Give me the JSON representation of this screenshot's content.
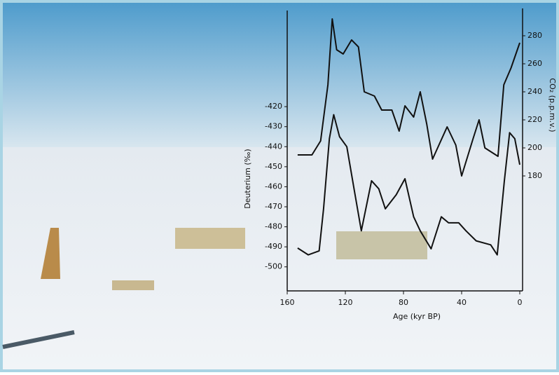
{
  "chart_data": {
    "type": "line",
    "x_label": "Age (kyr BP)",
    "y_label": "Deuterium (‰)",
    "y2_label": "CO₂ (p.p.m.v.)",
    "xlim": [
      160,
      0
    ],
    "xticks": [
      160,
      120,
      80,
      40,
      0
    ],
    "ylim": [
      -512,
      -372
    ],
    "yticks": [
      -420,
      -430,
      -440,
      -450,
      -460,
      -470,
      -480,
      -490,
      -500
    ],
    "y2lim": [
      98,
      298
    ],
    "y2ticks": [
      280,
      260,
      240,
      220,
      200,
      180
    ],
    "series": [
      {
        "color": "#111111",
        "axis": "y2",
        "x": [
          152.8,
          143,
          137,
          132,
          129,
          126,
          121.5,
          115.7,
          111,
          107,
          100,
          95,
          88,
          83,
          79,
          73,
          68.5,
          64,
          60,
          50,
          44,
          40,
          32,
          28,
          24,
          15,
          11,
          6,
          0
        ],
        "values": [
          195,
          195,
          205,
          245,
          292,
          270,
          267,
          277,
          272,
          240,
          237,
          227,
          227,
          212,
          230,
          222,
          240,
          217,
          192,
          215,
          202,
          180,
          207,
          220,
          200,
          194,
          245,
          257,
          275
        ]
      },
      {
        "color": "#111111",
        "axis": "y",
        "x": [
          152.8,
          145.5,
          138,
          135,
          131,
          128,
          124,
          119,
          114,
          109,
          102,
          97,
          92.5,
          85,
          79,
          73,
          68.5,
          61,
          54,
          49,
          42,
          37,
          30,
          20,
          15.5,
          10.6,
          7,
          3.4,
          0
        ],
        "values": [
          -490.6,
          -494,
          -492,
          -471,
          -436,
          -424,
          -435,
          -440,
          -461,
          -482,
          -457,
          -461,
          -471,
          -464,
          -456,
          -475,
          -482,
          -491,
          -475,
          -478,
          -478,
          -482,
          -487,
          -489,
          -494,
          -457,
          -433,
          -436,
          -449
        ]
      }
    ]
  }
}
